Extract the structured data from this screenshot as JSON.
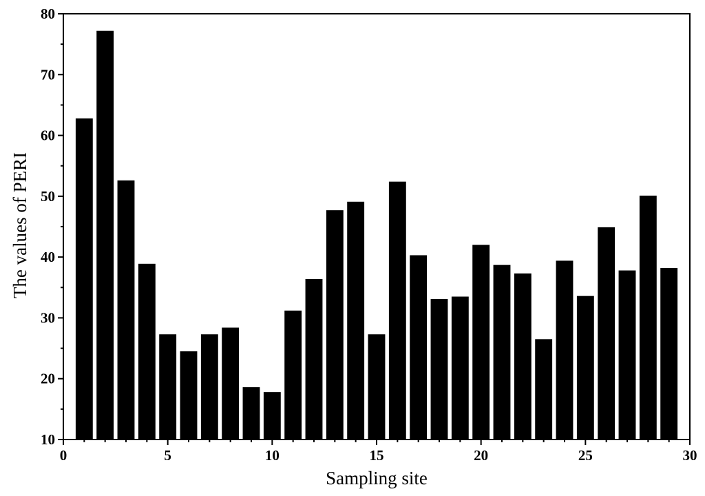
{
  "chart_data": {
    "type": "bar",
    "title": "",
    "xlabel": "Sampling site",
    "ylabel": "The values of PERI",
    "xlim": [
      0,
      30
    ],
    "ylim": [
      10,
      80
    ],
    "x_ticks": [
      0,
      5,
      10,
      15,
      20,
      25,
      30
    ],
    "y_ticks": [
      10,
      20,
      30,
      40,
      50,
      60,
      70,
      80
    ],
    "x_minor_step": 1,
    "y_minor_step": 5,
    "grid": false,
    "bar_color": "#000000",
    "x": [
      1,
      2,
      3,
      4,
      5,
      6,
      7,
      8,
      9,
      10,
      11,
      12,
      13,
      14,
      15,
      16,
      17,
      18,
      19,
      20,
      21,
      22,
      23,
      24,
      25,
      26,
      27,
      28,
      29
    ],
    "values": [
      62.8,
      77.2,
      52.6,
      38.9,
      27.3,
      24.5,
      27.3,
      28.4,
      18.6,
      17.8,
      31.2,
      36.4,
      47.7,
      49.1,
      27.3,
      52.4,
      40.3,
      33.1,
      33.5,
      42.0,
      38.7,
      37.3,
      26.5,
      39.4,
      33.6,
      44.9,
      37.8,
      50.1,
      38.2
    ]
  }
}
